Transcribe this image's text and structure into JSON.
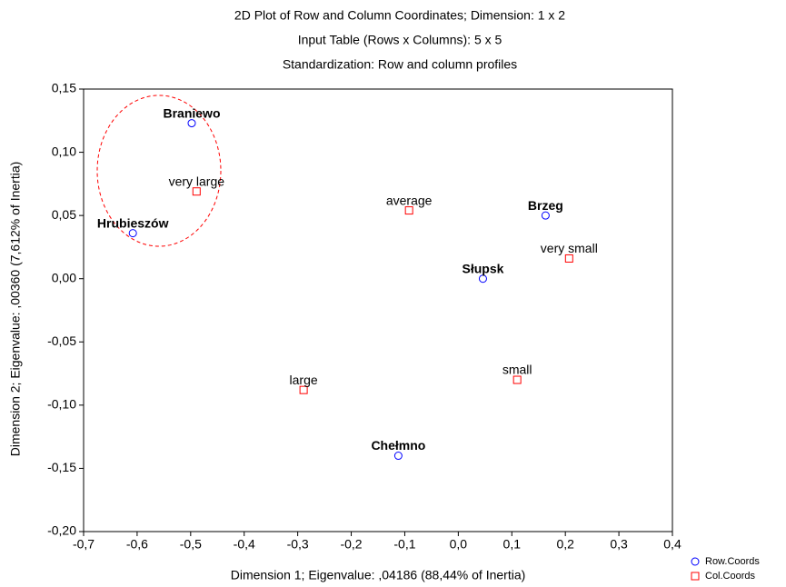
{
  "chart_data": {
    "type": "scatter",
    "title": "2D Plot of Row and Column Coordinates; Dimension:  1 x  2",
    "subtitle": [
      "Input Table (Rows x Columns): 5 x 5",
      "Standardization: Row and column profiles"
    ],
    "x_label": "Dimension 1; Eigenvalue: ,04186 (88,44% of Inertia)",
    "y_label": "Dimension 2; Eigenvalue: ,00360 (7,612% of Inertia)",
    "xlim": [
      -0.7,
      0.4
    ],
    "ylim": [
      -0.2,
      0.15
    ],
    "xticks": [
      {
        "value": -0.7,
        "label": "-0,7"
      },
      {
        "value": -0.6,
        "label": "-0,6"
      },
      {
        "value": -0.5,
        "label": "-0,5"
      },
      {
        "value": -0.4,
        "label": "-0,4"
      },
      {
        "value": -0.3,
        "label": "-0,3"
      },
      {
        "value": -0.2,
        "label": "-0,2"
      },
      {
        "value": -0.1,
        "label": "-0,1"
      },
      {
        "value": 0,
        "label": "0,0"
      },
      {
        "value": 0.1,
        "label": "0,1"
      },
      {
        "value": 0.2,
        "label": "0,2"
      },
      {
        "value": 0.3,
        "label": "0,3"
      },
      {
        "value": 0.4,
        "label": "0,4"
      }
    ],
    "yticks": [
      {
        "value": 0.15,
        "label": "0,15"
      },
      {
        "value": 0.1,
        "label": "0,10"
      },
      {
        "value": 0.05,
        "label": "0,05"
      },
      {
        "value": 0,
        "label": "0,00"
      },
      {
        "value": -0.05,
        "label": "-0,05"
      },
      {
        "value": -0.1,
        "label": "-0,10"
      },
      {
        "value": -0.15,
        "label": "-0,15"
      },
      {
        "value": -0.2,
        "label": "-0,20"
      }
    ],
    "grid": false,
    "legend": "bottom-right",
    "series": [
      {
        "name": "Row.Coords",
        "color": "#0000ff",
        "marker": "circle",
        "bold_labels": true,
        "labels": [
          "Braniewo",
          "Hrubieszów",
          "Brzeg",
          "Słupsk",
          "Chełmno"
        ],
        "x": [
          -0.498,
          -0.608,
          0.163,
          0.046,
          -0.112
        ],
        "values": [
          0.123,
          0.036,
          0.05,
          0.0,
          -0.14
        ]
      },
      {
        "name": "Col.Coords",
        "color": "#ff0000",
        "marker": "square",
        "bold_labels": false,
        "labels": [
          "very large",
          "average",
          "very small",
          "small",
          "large"
        ],
        "x": [
          -0.489,
          -0.092,
          0.207,
          0.11,
          -0.289
        ],
        "values": [
          0.069,
          0.054,
          0.016,
          -0.08,
          -0.088
        ]
      }
    ]
  }
}
